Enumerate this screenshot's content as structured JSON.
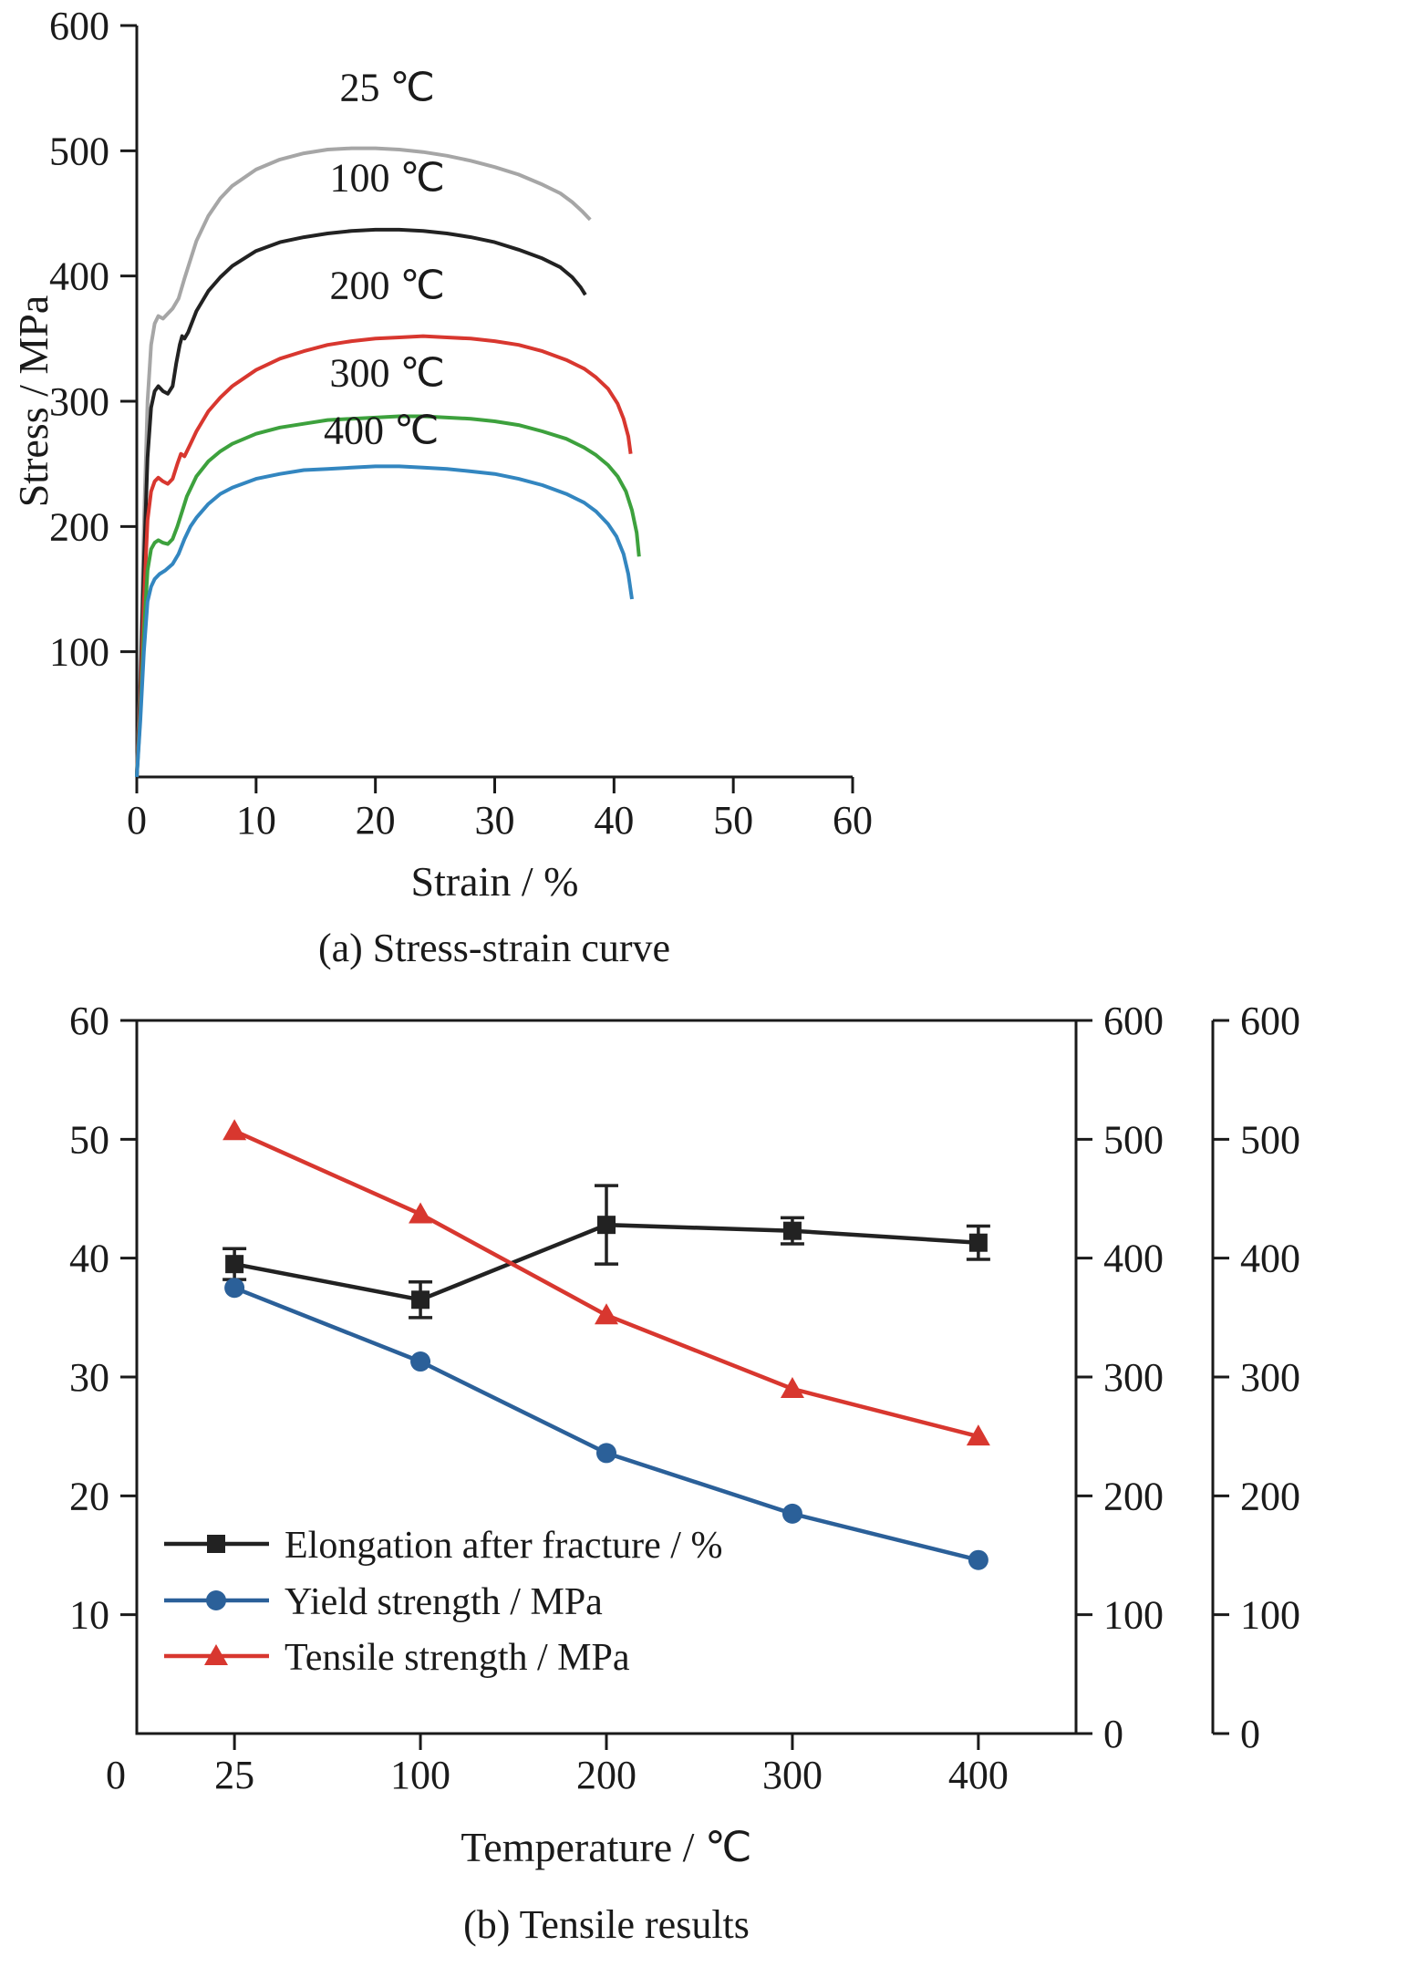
{
  "chart_data": [
    {
      "id": "stress_strain",
      "type": "line",
      "caption": "(a) Stress-strain curve",
      "xlabel": "Strain / %",
      "ylabel": "Stress / MPa",
      "xlim": [
        0,
        60
      ],
      "ylim": [
        0,
        600
      ],
      "x_ticks": [
        0,
        10,
        20,
        30,
        40,
        50,
        60
      ],
      "y_ticks": [
        100,
        200,
        300,
        400,
        500,
        600
      ],
      "grid": false,
      "series": [
        {
          "name": "25 ℃",
          "color": "#a6a6a6",
          "label_pos": [
            21,
            540
          ],
          "points": [
            [
              0,
              0
            ],
            [
              0.3,
              80
            ],
            [
              0.6,
              200
            ],
            [
              0.9,
              300
            ],
            [
              1.2,
              345
            ],
            [
              1.5,
              362
            ],
            [
              1.8,
              368
            ],
            [
              2.2,
              366
            ],
            [
              2.6,
              370
            ],
            [
              3.0,
              374
            ],
            [
              3.5,
              382
            ],
            [
              4,
              398
            ],
            [
              5,
              428
            ],
            [
              6,
              448
            ],
            [
              7,
              462
            ],
            [
              8,
              472
            ],
            [
              10,
              485
            ],
            [
              12,
              493
            ],
            [
              14,
              498
            ],
            [
              16,
              501
            ],
            [
              18,
              502
            ],
            [
              20,
              502
            ],
            [
              22,
              501
            ],
            [
              24,
              499
            ],
            [
              26,
              496
            ],
            [
              28,
              492
            ],
            [
              30,
              487
            ],
            [
              32,
              481
            ],
            [
              34,
              473
            ],
            [
              35.5,
              466
            ],
            [
              36.5,
              459
            ],
            [
              37.3,
              452
            ],
            [
              38,
              445
            ]
          ]
        },
        {
          "name": "100 ℃",
          "color": "#222222",
          "label_pos": [
            21,
            468
          ],
          "points": [
            [
              0,
              0
            ],
            [
              0.3,
              70
            ],
            [
              0.6,
              170
            ],
            [
              0.9,
              255
            ],
            [
              1.2,
              295
            ],
            [
              1.5,
              308
            ],
            [
              1.8,
              312
            ],
            [
              2.2,
              308
            ],
            [
              2.6,
              306
            ],
            [
              3.0,
              312
            ],
            [
              3.3,
              330
            ],
            [
              3.6,
              345
            ],
            [
              3.8,
              352
            ],
            [
              4.0,
              350
            ],
            [
              4.3,
              355
            ],
            [
              5,
              372
            ],
            [
              6,
              388
            ],
            [
              7,
              399
            ],
            [
              8,
              408
            ],
            [
              10,
              420
            ],
            [
              12,
              427
            ],
            [
              14,
              431
            ],
            [
              16,
              434
            ],
            [
              18,
              436
            ],
            [
              20,
              437
            ],
            [
              22,
              437
            ],
            [
              24,
              436
            ],
            [
              26,
              434
            ],
            [
              28,
              431
            ],
            [
              30,
              427
            ],
            [
              32,
              421
            ],
            [
              34,
              414
            ],
            [
              35.5,
              407
            ],
            [
              36.5,
              399
            ],
            [
              37.2,
              391
            ],
            [
              37.6,
              385
            ]
          ]
        },
        {
          "name": "200 ℃",
          "color": "#d8372f",
          "label_pos": [
            21,
            382
          ],
          "points": [
            [
              0,
              0
            ],
            [
              0.3,
              60
            ],
            [
              0.6,
              140
            ],
            [
              0.9,
              205
            ],
            [
              1.2,
              228
            ],
            [
              1.5,
              236
            ],
            [
              1.8,
              239
            ],
            [
              2.2,
              236
            ],
            [
              2.6,
              234
            ],
            [
              3.0,
              238
            ],
            [
              3.4,
              250
            ],
            [
              3.7,
              258
            ],
            [
              4.0,
              256
            ],
            [
              4.5,
              266
            ],
            [
              5,
              276
            ],
            [
              6,
              292
            ],
            [
              7,
              303
            ],
            [
              8,
              312
            ],
            [
              10,
              325
            ],
            [
              12,
              334
            ],
            [
              14,
              340
            ],
            [
              16,
              345
            ],
            [
              18,
              348
            ],
            [
              20,
              350
            ],
            [
              22,
              351
            ],
            [
              24,
              352
            ],
            [
              26,
              351
            ],
            [
              28,
              350
            ],
            [
              30,
              348
            ],
            [
              32,
              345
            ],
            [
              34,
              340
            ],
            [
              36,
              333
            ],
            [
              37.5,
              326
            ],
            [
              38.5,
              319
            ],
            [
              39.5,
              310
            ],
            [
              40.3,
              298
            ],
            [
              40.8,
              286
            ],
            [
              41.2,
              272
            ],
            [
              41.4,
              258
            ]
          ]
        },
        {
          "name": "300 ℃",
          "color": "#3da13d",
          "label_pos": [
            21,
            312
          ],
          "points": [
            [
              0,
              0
            ],
            [
              0.3,
              50
            ],
            [
              0.6,
              115
            ],
            [
              0.9,
              165
            ],
            [
              1.2,
              182
            ],
            [
              1.5,
              187
            ],
            [
              1.8,
              189
            ],
            [
              2.2,
              187
            ],
            [
              2.6,
              186
            ],
            [
              3.0,
              190
            ],
            [
              3.4,
              200
            ],
            [
              3.8,
              212
            ],
            [
              4.2,
              224
            ],
            [
              5,
              240
            ],
            [
              6,
              252
            ],
            [
              7,
              260
            ],
            [
              8,
              266
            ],
            [
              10,
              274
            ],
            [
              12,
              279
            ],
            [
              14,
              282
            ],
            [
              16,
              285
            ],
            [
              18,
              286
            ],
            [
              20,
              287
            ],
            [
              22,
              288
            ],
            [
              24,
              288
            ],
            [
              26,
              287
            ],
            [
              28,
              286
            ],
            [
              30,
              284
            ],
            [
              32,
              281
            ],
            [
              34,
              276
            ],
            [
              36,
              270
            ],
            [
              37.5,
              263
            ],
            [
              38.5,
              257
            ],
            [
              39.5,
              249
            ],
            [
              40.3,
              240
            ],
            [
              41,
              228
            ],
            [
              41.5,
              213
            ],
            [
              41.9,
              195
            ],
            [
              42.1,
              176
            ]
          ]
        },
        {
          "name": "400 ℃",
          "color": "#3386c0",
          "label_pos": [
            20.5,
            266
          ],
          "points": [
            [
              0,
              0
            ],
            [
              0.3,
              45
            ],
            [
              0.6,
              100
            ],
            [
              0.9,
              140
            ],
            [
              1.2,
              152
            ],
            [
              1.5,
              158
            ],
            [
              1.9,
              162
            ],
            [
              2.4,
              165
            ],
            [
              3.0,
              170
            ],
            [
              3.5,
              178
            ],
            [
              4,
              190
            ],
            [
              4.5,
              200
            ],
            [
              5,
              207
            ],
            [
              6,
              218
            ],
            [
              7,
              226
            ],
            [
              8,
              231
            ],
            [
              10,
              238
            ],
            [
              12,
              242
            ],
            [
              14,
              245
            ],
            [
              16,
              246
            ],
            [
              18,
              247
            ],
            [
              20,
              248
            ],
            [
              22,
              248
            ],
            [
              24,
              247
            ],
            [
              26,
              246
            ],
            [
              28,
              244
            ],
            [
              30,
              242
            ],
            [
              32,
              238
            ],
            [
              34,
              233
            ],
            [
              36,
              226
            ],
            [
              37.5,
              219
            ],
            [
              38.5,
              212
            ],
            [
              39.5,
              202
            ],
            [
              40.2,
              192
            ],
            [
              40.8,
              178
            ],
            [
              41.2,
              162
            ],
            [
              41.5,
              142
            ]
          ]
        }
      ]
    },
    {
      "id": "tensile_results",
      "type": "line",
      "caption": "(b) Tensile results",
      "xlabel": "Temperature / ℃",
      "origin_label": "0",
      "categories": [
        25,
        100,
        200,
        300,
        400
      ],
      "left_axis": {
        "ticks": [
          10,
          20,
          30,
          40,
          50,
          60
        ],
        "lim": [
          0,
          60
        ]
      },
      "right_axis": {
        "ticks": [
          0,
          100,
          200,
          300,
          400,
          500,
          600
        ],
        "lim": [
          0,
          600
        ]
      },
      "far_axis": {
        "ticks": [
          0,
          100,
          200,
          300,
          400,
          500,
          600
        ],
        "lim": [
          0,
          600
        ]
      },
      "series": [
        {
          "name": "Elongation after fracture / %",
          "axis": "left",
          "marker": "square",
          "color": "#222222",
          "values": [
            39.5,
            36.5,
            42.8,
            42.3,
            41.3
          ],
          "errors": [
            1.3,
            1.5,
            3.3,
            1.1,
            1.4
          ]
        },
        {
          "name": "Yield strength / MPa",
          "axis": "right",
          "marker": "circle",
          "color": "#2b6099",
          "values": [
            375,
            313,
            236,
            185,
            146
          ]
        },
        {
          "name": "Tensile strength / MPa",
          "axis": "right",
          "marker": "triangle",
          "color": "#d8372f",
          "values": [
            507,
            437,
            352,
            290,
            250
          ]
        }
      ],
      "legend": [
        "Elongation after fracture / %",
        "Yield strength / MPa",
        "Tensile strength / MPa"
      ],
      "legend_position": "lower-left"
    }
  ]
}
